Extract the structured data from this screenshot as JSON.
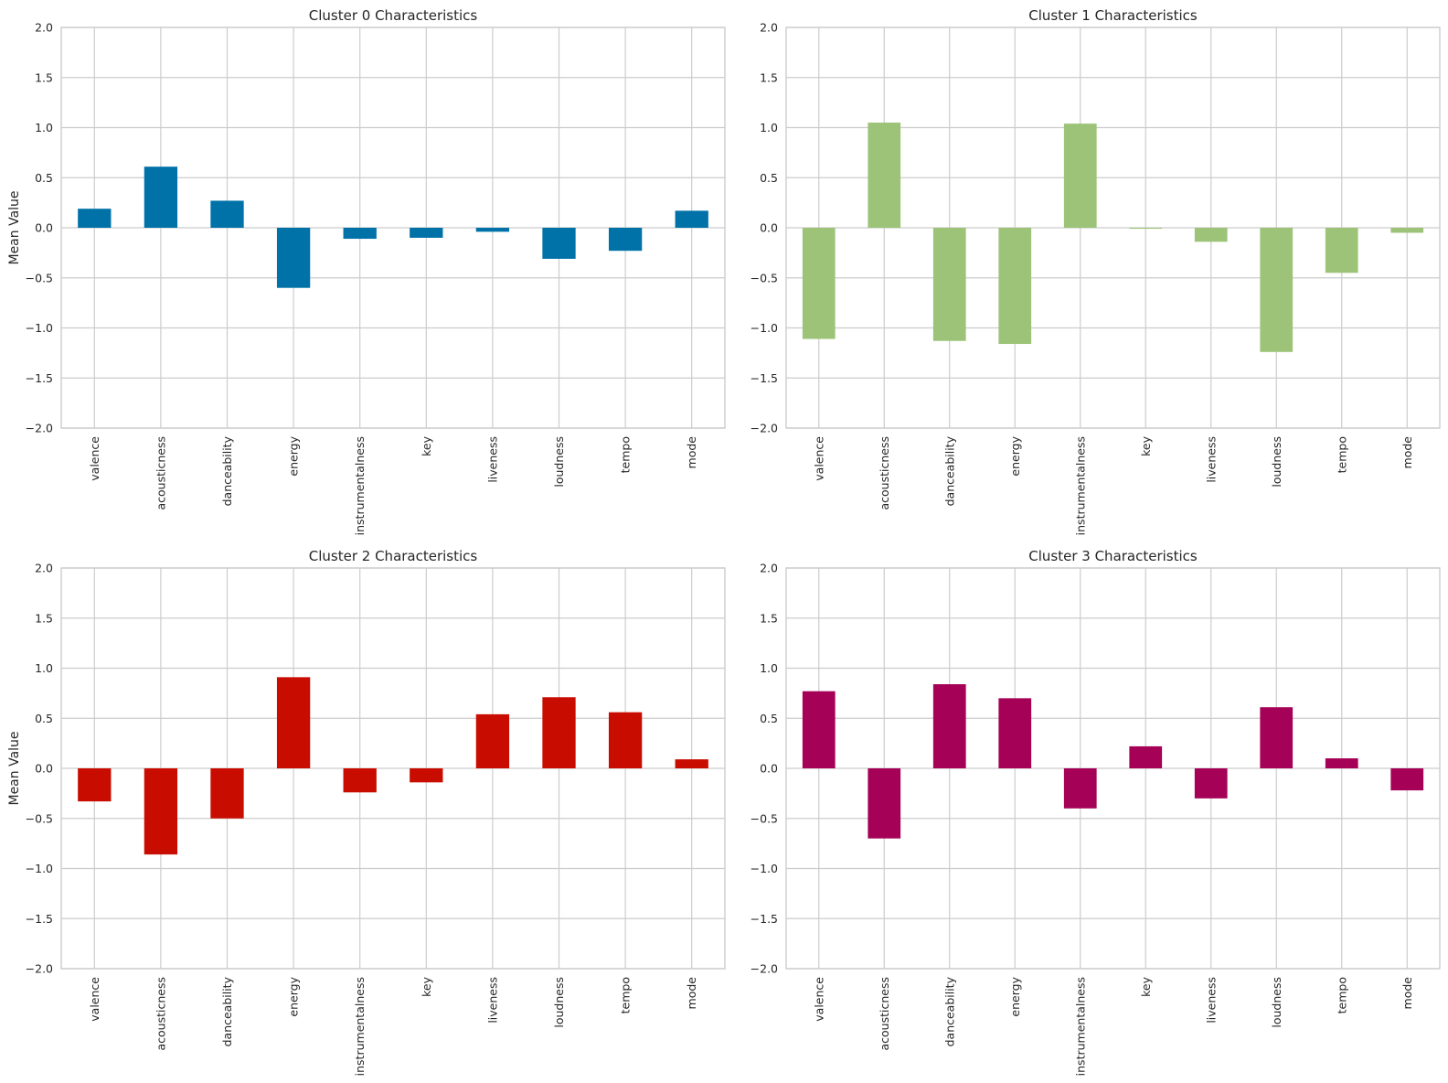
{
  "chart_data": [
    {
      "type": "bar",
      "title": "Cluster 0 Characteristics",
      "ylabel": "Mean Value",
      "xlabel": "",
      "ylim": [
        -2.0,
        2.0
      ],
      "yticks": [
        "2.0",
        "1.5",
        "1.0",
        "0.5",
        "0.0",
        "−0.5",
        "−1.0",
        "−1.5",
        "−2.0"
      ],
      "ytick_values": [
        2.0,
        1.5,
        1.0,
        0.5,
        0.0,
        -0.5,
        -1.0,
        -1.5,
        -2.0
      ],
      "grid": true,
      "color": "#0072a8",
      "categories": [
        "valence",
        "acousticness",
        "danceability",
        "energy",
        "instrumentalness",
        "key",
        "liveness",
        "loudness",
        "tempo",
        "mode"
      ],
      "values": [
        0.19,
        0.61,
        0.27,
        -0.6,
        -0.11,
        -0.1,
        -0.04,
        -0.31,
        -0.23,
        0.17
      ]
    },
    {
      "type": "bar",
      "title": "Cluster 1 Characteristics",
      "ylabel": "",
      "xlabel": "",
      "ylim": [
        -2.0,
        2.0
      ],
      "yticks": [
        "2.0",
        "1.5",
        "1.0",
        "0.5",
        "0.0",
        "−0.5",
        "−1.0",
        "−1.5",
        "−2.0"
      ],
      "ytick_values": [
        2.0,
        1.5,
        1.0,
        0.5,
        0.0,
        -0.5,
        -1.0,
        -1.5,
        -2.0
      ],
      "grid": true,
      "color": "#9dc378",
      "categories": [
        "valence",
        "acousticness",
        "danceability",
        "energy",
        "instrumentalness",
        "key",
        "liveness",
        "loudness",
        "tempo",
        "mode"
      ],
      "values": [
        -1.11,
        1.05,
        -1.13,
        -1.16,
        1.04,
        -0.01,
        -0.14,
        -1.24,
        -0.45,
        -0.05
      ]
    },
    {
      "type": "bar",
      "title": "Cluster 2 Characteristics",
      "ylabel": "Mean Value",
      "xlabel": "",
      "ylim": [
        -2.0,
        2.0
      ],
      "yticks": [
        "2.0",
        "1.5",
        "1.0",
        "0.5",
        "0.0",
        "−0.5",
        "−1.0",
        "−1.5",
        "−2.0"
      ],
      "ytick_values": [
        2.0,
        1.5,
        1.0,
        0.5,
        0.0,
        -0.5,
        -1.0,
        -1.5,
        -2.0
      ],
      "grid": true,
      "color": "#c80c00",
      "categories": [
        "valence",
        "acousticness",
        "danceability",
        "energy",
        "instrumentalness",
        "key",
        "liveness",
        "loudness",
        "tempo",
        "mode"
      ],
      "values": [
        -0.33,
        -0.86,
        -0.5,
        0.91,
        -0.24,
        -0.14,
        0.54,
        0.71,
        0.56,
        0.09
      ]
    },
    {
      "type": "bar",
      "title": "Cluster 3 Characteristics",
      "ylabel": "",
      "xlabel": "",
      "ylim": [
        -2.0,
        2.0
      ],
      "yticks": [
        "2.0",
        "1.5",
        "1.0",
        "0.5",
        "0.0",
        "−0.5",
        "−1.0",
        "−1.5",
        "−2.0"
      ],
      "ytick_values": [
        2.0,
        1.5,
        1.0,
        0.5,
        0.0,
        -0.5,
        -1.0,
        -1.5,
        -2.0
      ],
      "grid": true,
      "color": "#a50156",
      "categories": [
        "valence",
        "acousticness",
        "danceability",
        "energy",
        "instrumentalness",
        "key",
        "liveness",
        "loudness",
        "tempo",
        "mode"
      ],
      "values": [
        0.77,
        -0.7,
        0.84,
        0.7,
        -0.4,
        0.22,
        -0.3,
        0.61,
        0.1,
        -0.22
      ]
    }
  ]
}
